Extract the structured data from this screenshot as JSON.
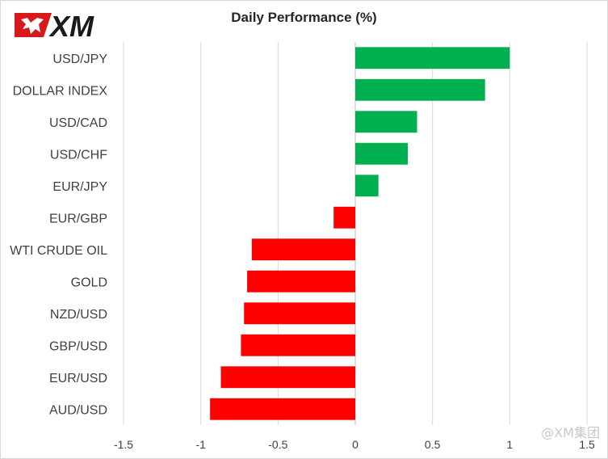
{
  "brand": {
    "logo_text": "XM",
    "logo_color": "#d7191c",
    "watermark": "@XM集团"
  },
  "chart_data": {
    "type": "bar",
    "orientation": "horizontal",
    "title": "Daily Performance (%)",
    "categories": [
      "USD/JPY",
      "DOLLAR INDEX",
      "USD/CAD",
      "USD/CHF",
      "EUR/JPY",
      "EUR/GBP",
      "WTI CRUDE OIL",
      "GOLD",
      "NZD/USD",
      "GBP/USD",
      "EUR/USD",
      "AUD/USD"
    ],
    "values": [
      1.0,
      0.84,
      0.4,
      0.34,
      0.15,
      -0.14,
      -0.67,
      -0.7,
      -0.72,
      -0.74,
      -0.87,
      -0.94
    ],
    "xlim": [
      -1.5,
      1.5
    ],
    "xticks": [
      -1.5,
      -1,
      -0.5,
      0,
      0.5,
      1,
      1.5
    ],
    "xtick_labels": [
      "-1.5",
      "-1",
      "-0.5",
      "0",
      "0.5",
      "1",
      "1.5"
    ],
    "grid": "vertical",
    "positive_color": "#00b050",
    "negative_color": "#ff0000",
    "legend": "none"
  }
}
